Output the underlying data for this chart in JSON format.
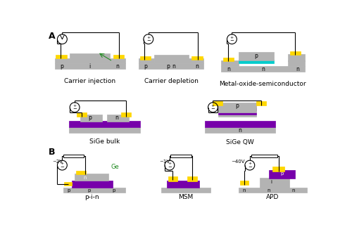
{
  "colors": {
    "gray": "#b3b3b3",
    "yellow": "#ffd700",
    "purple": "#7700aa",
    "cyan": "#00cccc",
    "white": "#ffffff",
    "black": "#000000",
    "green": "#228B22",
    "bg": "#ffffff"
  },
  "labels": {
    "A": "A",
    "B": "B",
    "carrier_injection": "Carrier injection",
    "carrier_depletion": "Carrier depletion",
    "mos": "Metal-oxide-semiconductor",
    "sige_bulk": "SiGe bulk",
    "sige_qw": "SiGe QW",
    "pin": "p-i-n",
    "msm": "MSM",
    "apd": "APD",
    "twoV": "~2V",
    "oneV": "~1V",
    "fortyV": "~40V",
    "Ge": "Ge"
  }
}
